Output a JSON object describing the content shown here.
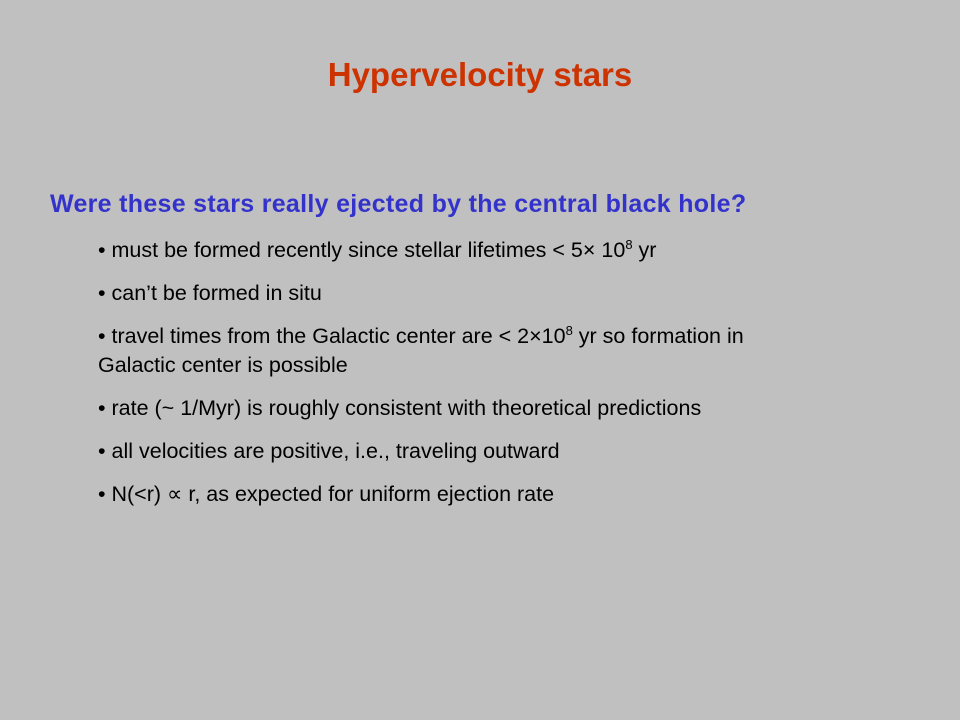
{
  "title": "Hypervelocity stars",
  "subtitle": "Were these stars really ejected by the central black hole?",
  "bullets": [
    {
      "pre": "• must be formed recently since stellar lifetimes < 5× 10",
      "sup": "8",
      "post": " yr",
      "cont": ""
    },
    {
      "pre": "• can’t be formed in situ",
      "sup": "",
      "post": "",
      "cont": ""
    },
    {
      "pre": "• travel times from the Galactic center are < 2×10",
      "sup": "8",
      "post": " yr so formation in",
      "cont": "Galactic center is possible"
    },
    {
      "pre": "• rate (~ 1/Myr) is roughly consistent with theoretical predictions",
      "sup": "",
      "post": "",
      "cont": ""
    },
    {
      "pre": "• all velocities are positive, i.e., traveling outward",
      "sup": "",
      "post": "",
      "cont": ""
    },
    {
      "pre": "• N(<r) ∝ r, as expected for uniform ejection rate",
      "sup": "",
      "post": "",
      "cont": ""
    }
  ],
  "colors": {
    "background": "#c0c0c0",
    "title": "#cc3300",
    "subtitle": "#3333cc",
    "text": "#000000"
  }
}
